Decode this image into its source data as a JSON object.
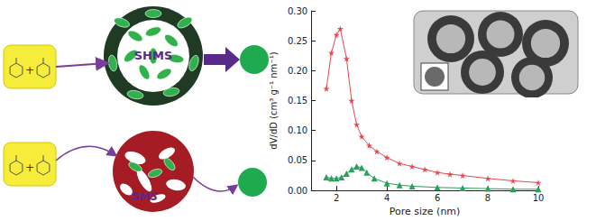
{
  "chart_data": {
    "type": "line",
    "x_label": "Pore size (nm)",
    "y_label": "dV/dD (cm³ g⁻¹ nm⁻¹)",
    "xlim": [
      1,
      10
    ],
    "xticks": [
      2,
      4,
      6,
      8,
      10
    ],
    "ylim": [
      0,
      0.3
    ],
    "yticks": [
      {
        "value": 0,
        "label": "0.00"
      },
      {
        "value": 0.05,
        "label": "0.05"
      },
      {
        "value": 0.1,
        "label": "0.10"
      },
      {
        "value": 0.15,
        "label": "0.15"
      },
      {
        "value": 0.2,
        "label": "0.20"
      },
      {
        "value": 0.25,
        "label": "0.25"
      },
      {
        "value": 0.3,
        "label": "0.30"
      }
    ],
    "grid": false,
    "series": [
      {
        "color": "#e8474f",
        "marker": "star",
        "x": [
          1.6,
          1.8,
          2.0,
          2.15,
          2.4,
          2.6,
          2.8,
          3.0,
          3.3,
          3.6,
          4.0,
          4.5,
          5.0,
          5.5,
          6.0,
          6.5,
          7.0,
          8.0,
          9.0,
          10.0
        ],
        "values": [
          0.17,
          0.23,
          0.26,
          0.27,
          0.22,
          0.15,
          0.11,
          0.09,
          0.075,
          0.065,
          0.055,
          0.045,
          0.04,
          0.035,
          0.03,
          0.027,
          0.025,
          0.02,
          0.016,
          0.013
        ]
      },
      {
        "color": "#2aa05a",
        "marker": "triangle",
        "x": [
          1.6,
          1.8,
          2.0,
          2.2,
          2.4,
          2.6,
          2.8,
          3.0,
          3.2,
          3.5,
          4.0,
          4.5,
          5.0,
          6.0,
          7.0,
          8.0,
          9.0,
          10.0
        ],
        "values": [
          0.022,
          0.02,
          0.02,
          0.022,
          0.028,
          0.035,
          0.04,
          0.038,
          0.03,
          0.02,
          0.012,
          0.009,
          0.007,
          0.005,
          0.004,
          0.003,
          0.002,
          0.002
        ]
      }
    ]
  },
  "diagram": {
    "reactant_symbol": "+",
    "top_particle": {
      "label": "SHMS"
    },
    "bottom_particle": {
      "label": "SMS"
    }
  }
}
